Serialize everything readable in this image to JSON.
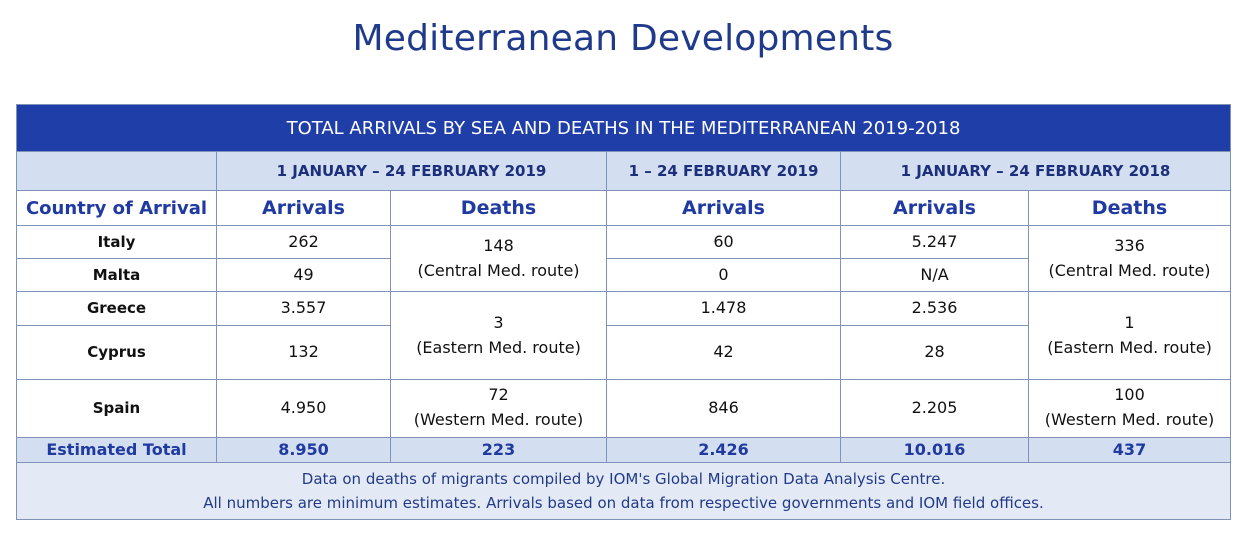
{
  "title": "Mediterranean Developments",
  "table": {
    "banner": "TOTAL ARRIVALS BY SEA AND DEATHS IN THE MEDITERRANEAN 2019-2018",
    "periods": [
      "1 JANUARY – 24 FEBRUARY 2019",
      "1 – 24 FEBRUARY 2019",
      "1 JANUARY – 24 FEBRUARY 2018"
    ],
    "headers": {
      "country": "Country of Arrival",
      "arrivals": "Arrivals",
      "deaths": "Deaths"
    },
    "rows": [
      {
        "country": "Italy",
        "arr_2019": "262",
        "arr_feb_2019": "60",
        "arr_2018": "5.247"
      },
      {
        "country": "Malta",
        "arr_2019": "49",
        "arr_feb_2019": "0",
        "arr_2018": "N/A"
      },
      {
        "country": "Greece",
        "arr_2019": "3.557",
        "arr_feb_2019": "1.478",
        "arr_2018": "2.536"
      },
      {
        "country": "Cyprus",
        "arr_2019": "132",
        "arr_feb_2019": "42",
        "arr_2018": "28"
      },
      {
        "country": "Spain",
        "arr_2019": "4.950",
        "arr_feb_2019": "846",
        "arr_2018": "2.205"
      }
    ],
    "deaths_2019": {
      "central": {
        "value": "148",
        "route": "(Central Med. route)"
      },
      "eastern": {
        "value": "3",
        "route": "(Eastern Med. route)"
      },
      "western": {
        "value": "72",
        "route": "(Western Med. route)"
      }
    },
    "deaths_2018": {
      "central": {
        "value": "336",
        "route": "(Central Med. route)"
      },
      "eastern": {
        "value": "1",
        "route": "(Eastern Med. route)"
      },
      "western": {
        "value": "100",
        "route": "(Western Med. route)"
      }
    },
    "totals": {
      "label": "Estimated Total",
      "arr_2019": "8.950",
      "deaths_2019": "223",
      "arr_feb_2019": "2.426",
      "arr_2018": "10.016",
      "deaths_2018": "437"
    },
    "notes": [
      "Data on deaths of migrants compiled by IOM's Global Migration Data Analysis Centre.",
      "All numbers are minimum estimates. Arrivals based on data from respective governments and IOM field offices."
    ]
  }
}
